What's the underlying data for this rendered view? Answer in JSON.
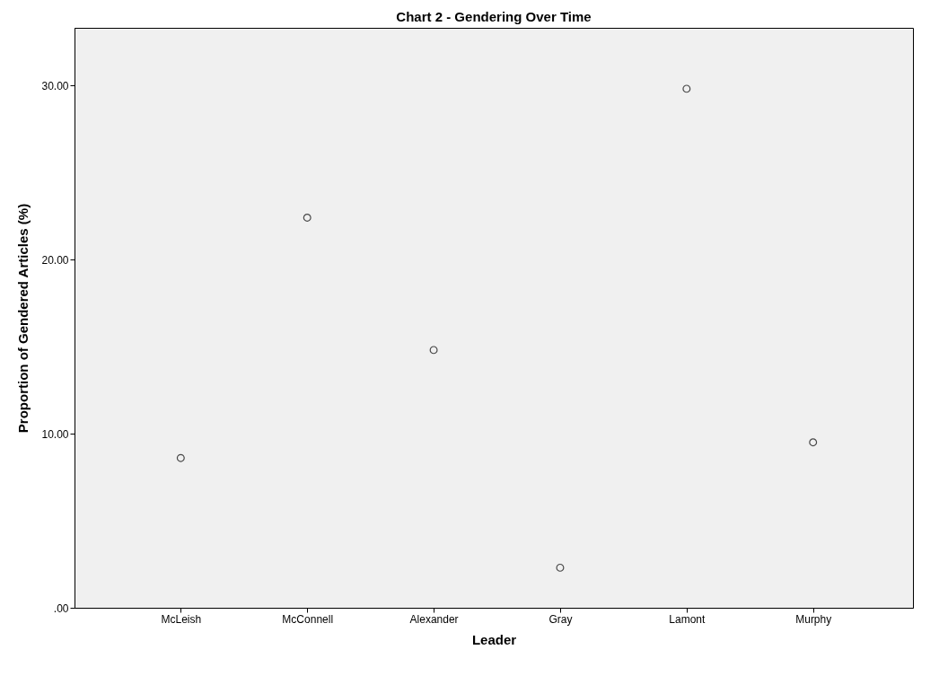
{
  "chart_data": {
    "type": "scatter",
    "title": "Chart 2 - Gendering Over Time",
    "xlabel": "Leader",
    "ylabel": "Proportion of Gendered Articles (%)",
    "categories": [
      "McLeish",
      "McConnell",
      "Alexander",
      "Gray",
      "Lamont",
      "Murphy"
    ],
    "series": [
      {
        "color": "#000000",
        "values": [
          8.6,
          22.4,
          14.8,
          2.3,
          29.8,
          9.5
        ]
      }
    ],
    "ylim": [
      0,
      33.3
    ],
    "yticks": [
      {
        "value": 0,
        "label": ".00"
      },
      {
        "value": 10,
        "label": "10.00"
      },
      {
        "value": 20,
        "label": "20.00"
      },
      {
        "value": 30,
        "label": "30.00"
      }
    ],
    "grid": false,
    "legend": false,
    "marker": "circle"
  }
}
